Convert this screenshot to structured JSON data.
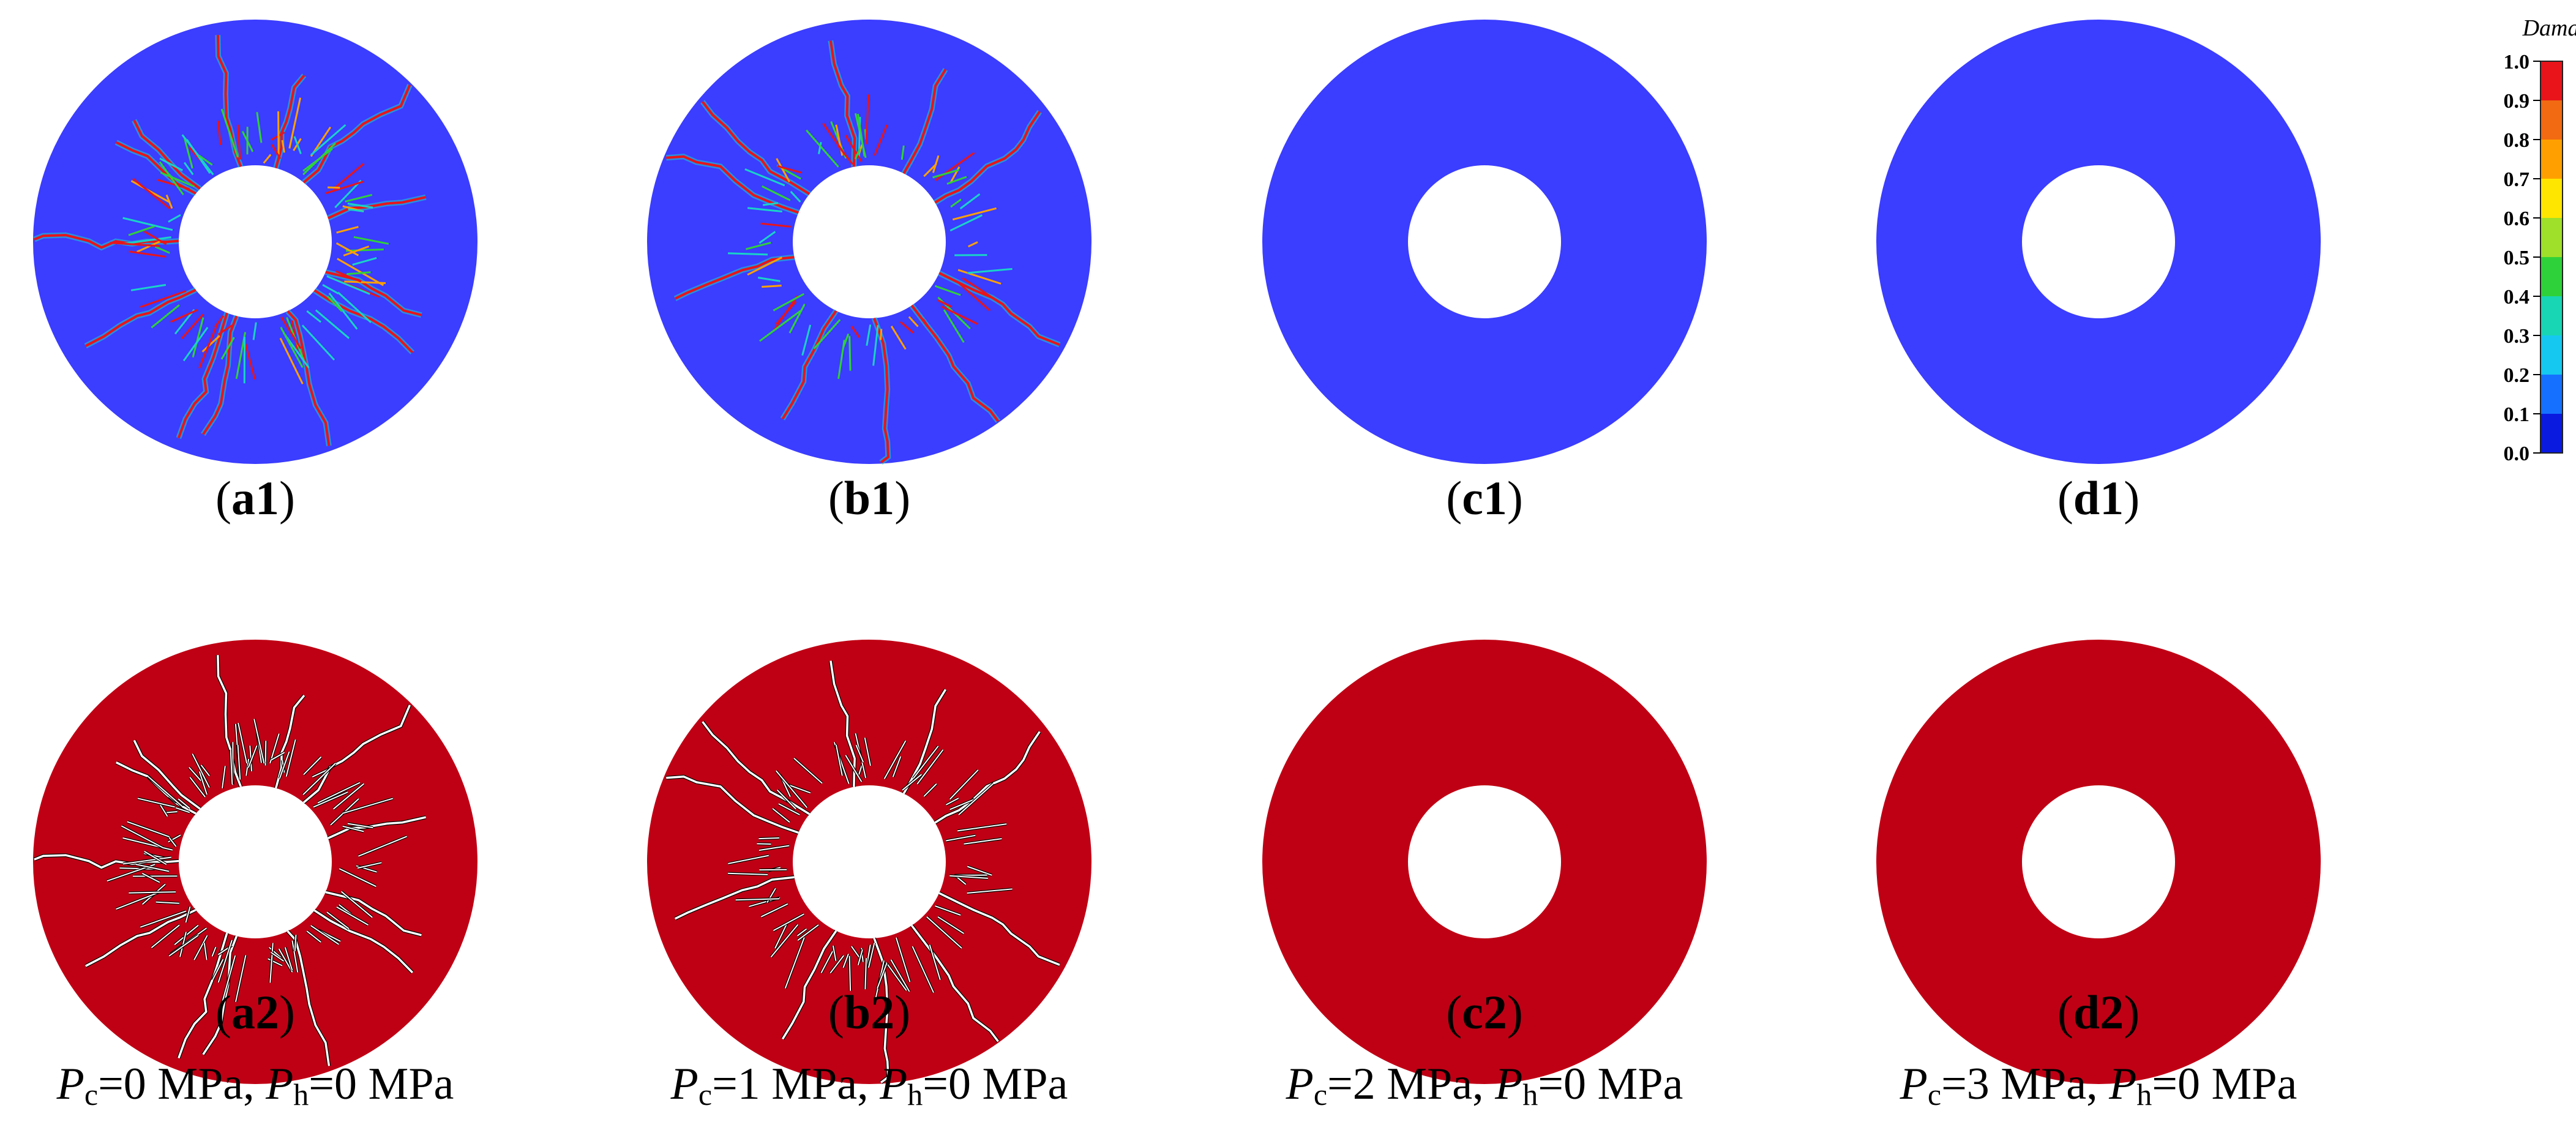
{
  "panels": [
    {
      "id": "a1",
      "row": 1,
      "col": 1,
      "map": "damage",
      "cracked": true,
      "seed": 11,
      "label_letter": "a",
      "label_num": "1"
    },
    {
      "id": "b1",
      "row": 1,
      "col": 2,
      "map": "damage",
      "cracked": true,
      "seed": 23,
      "label_letter": "b",
      "label_num": "1"
    },
    {
      "id": "c1",
      "row": 1,
      "col": 3,
      "map": "damage",
      "cracked": false,
      "seed": 0,
      "label_letter": "c",
      "label_num": "1"
    },
    {
      "id": "d1",
      "row": 1,
      "col": 4,
      "map": "damage",
      "cracked": false,
      "seed": 0,
      "label_letter": "d",
      "label_num": "1"
    },
    {
      "id": "a2",
      "row": 2,
      "col": 1,
      "map": "fracture",
      "cracked": true,
      "seed": 11,
      "label_letter": "a",
      "label_num": "2"
    },
    {
      "id": "b2",
      "row": 2,
      "col": 2,
      "map": "fracture",
      "cracked": true,
      "seed": 23,
      "label_letter": "b",
      "label_num": "2"
    },
    {
      "id": "c2",
      "row": 2,
      "col": 3,
      "map": "fracture",
      "cracked": false,
      "seed": 0,
      "label_letter": "c",
      "label_num": "2"
    },
    {
      "id": "d2",
      "row": 2,
      "col": 4,
      "map": "fracture",
      "cracked": false,
      "seed": 0,
      "label_letter": "d",
      "label_num": "2"
    }
  ],
  "conditions": [
    {
      "pc_symbol": "P",
      "pc_sub": "c",
      "pc_value": "=0 MPa,",
      "ph_symbol": "P",
      "ph_sub": "h",
      "ph_value": "=0 MPa"
    },
    {
      "pc_symbol": "P",
      "pc_sub": "c",
      "pc_value": "=1 MPa,",
      "ph_symbol": "P",
      "ph_sub": "h",
      "ph_value": "=0 MPa"
    },
    {
      "pc_symbol": "P",
      "pc_sub": "c",
      "pc_value": "=2 MPa,",
      "ph_symbol": "P",
      "ph_sub": "h",
      "ph_value": "=0 MPa"
    },
    {
      "pc_symbol": "P",
      "pc_sub": "c",
      "pc_value": "=3 MPa,",
      "ph_symbol": "P",
      "ph_sub": "h",
      "ph_value": "=0 MPa"
    }
  ],
  "colorbar": {
    "title": "Damage",
    "ticks": [
      "1.0",
      "0.9",
      "0.8",
      "0.7",
      "0.6",
      "0.5",
      "0.4",
      "0.3",
      "0.2",
      "0.1",
      "0.0"
    ],
    "colors": [
      "#e8141a",
      "#f26a12",
      "#ffa000",
      "#ffe600",
      "#9ee02a",
      "#2fd13a",
      "#18d6b4",
      "#15c8ef",
      "#1570ff",
      "#0a1adf"
    ]
  },
  "colors": {
    "intact_damage": "#3b3dff",
    "intact_fracture": "#bf0014",
    "crack_damage": "#e8141a",
    "crack_fracture": "#ffffff",
    "crack_edge_fracture": "#000000"
  }
}
